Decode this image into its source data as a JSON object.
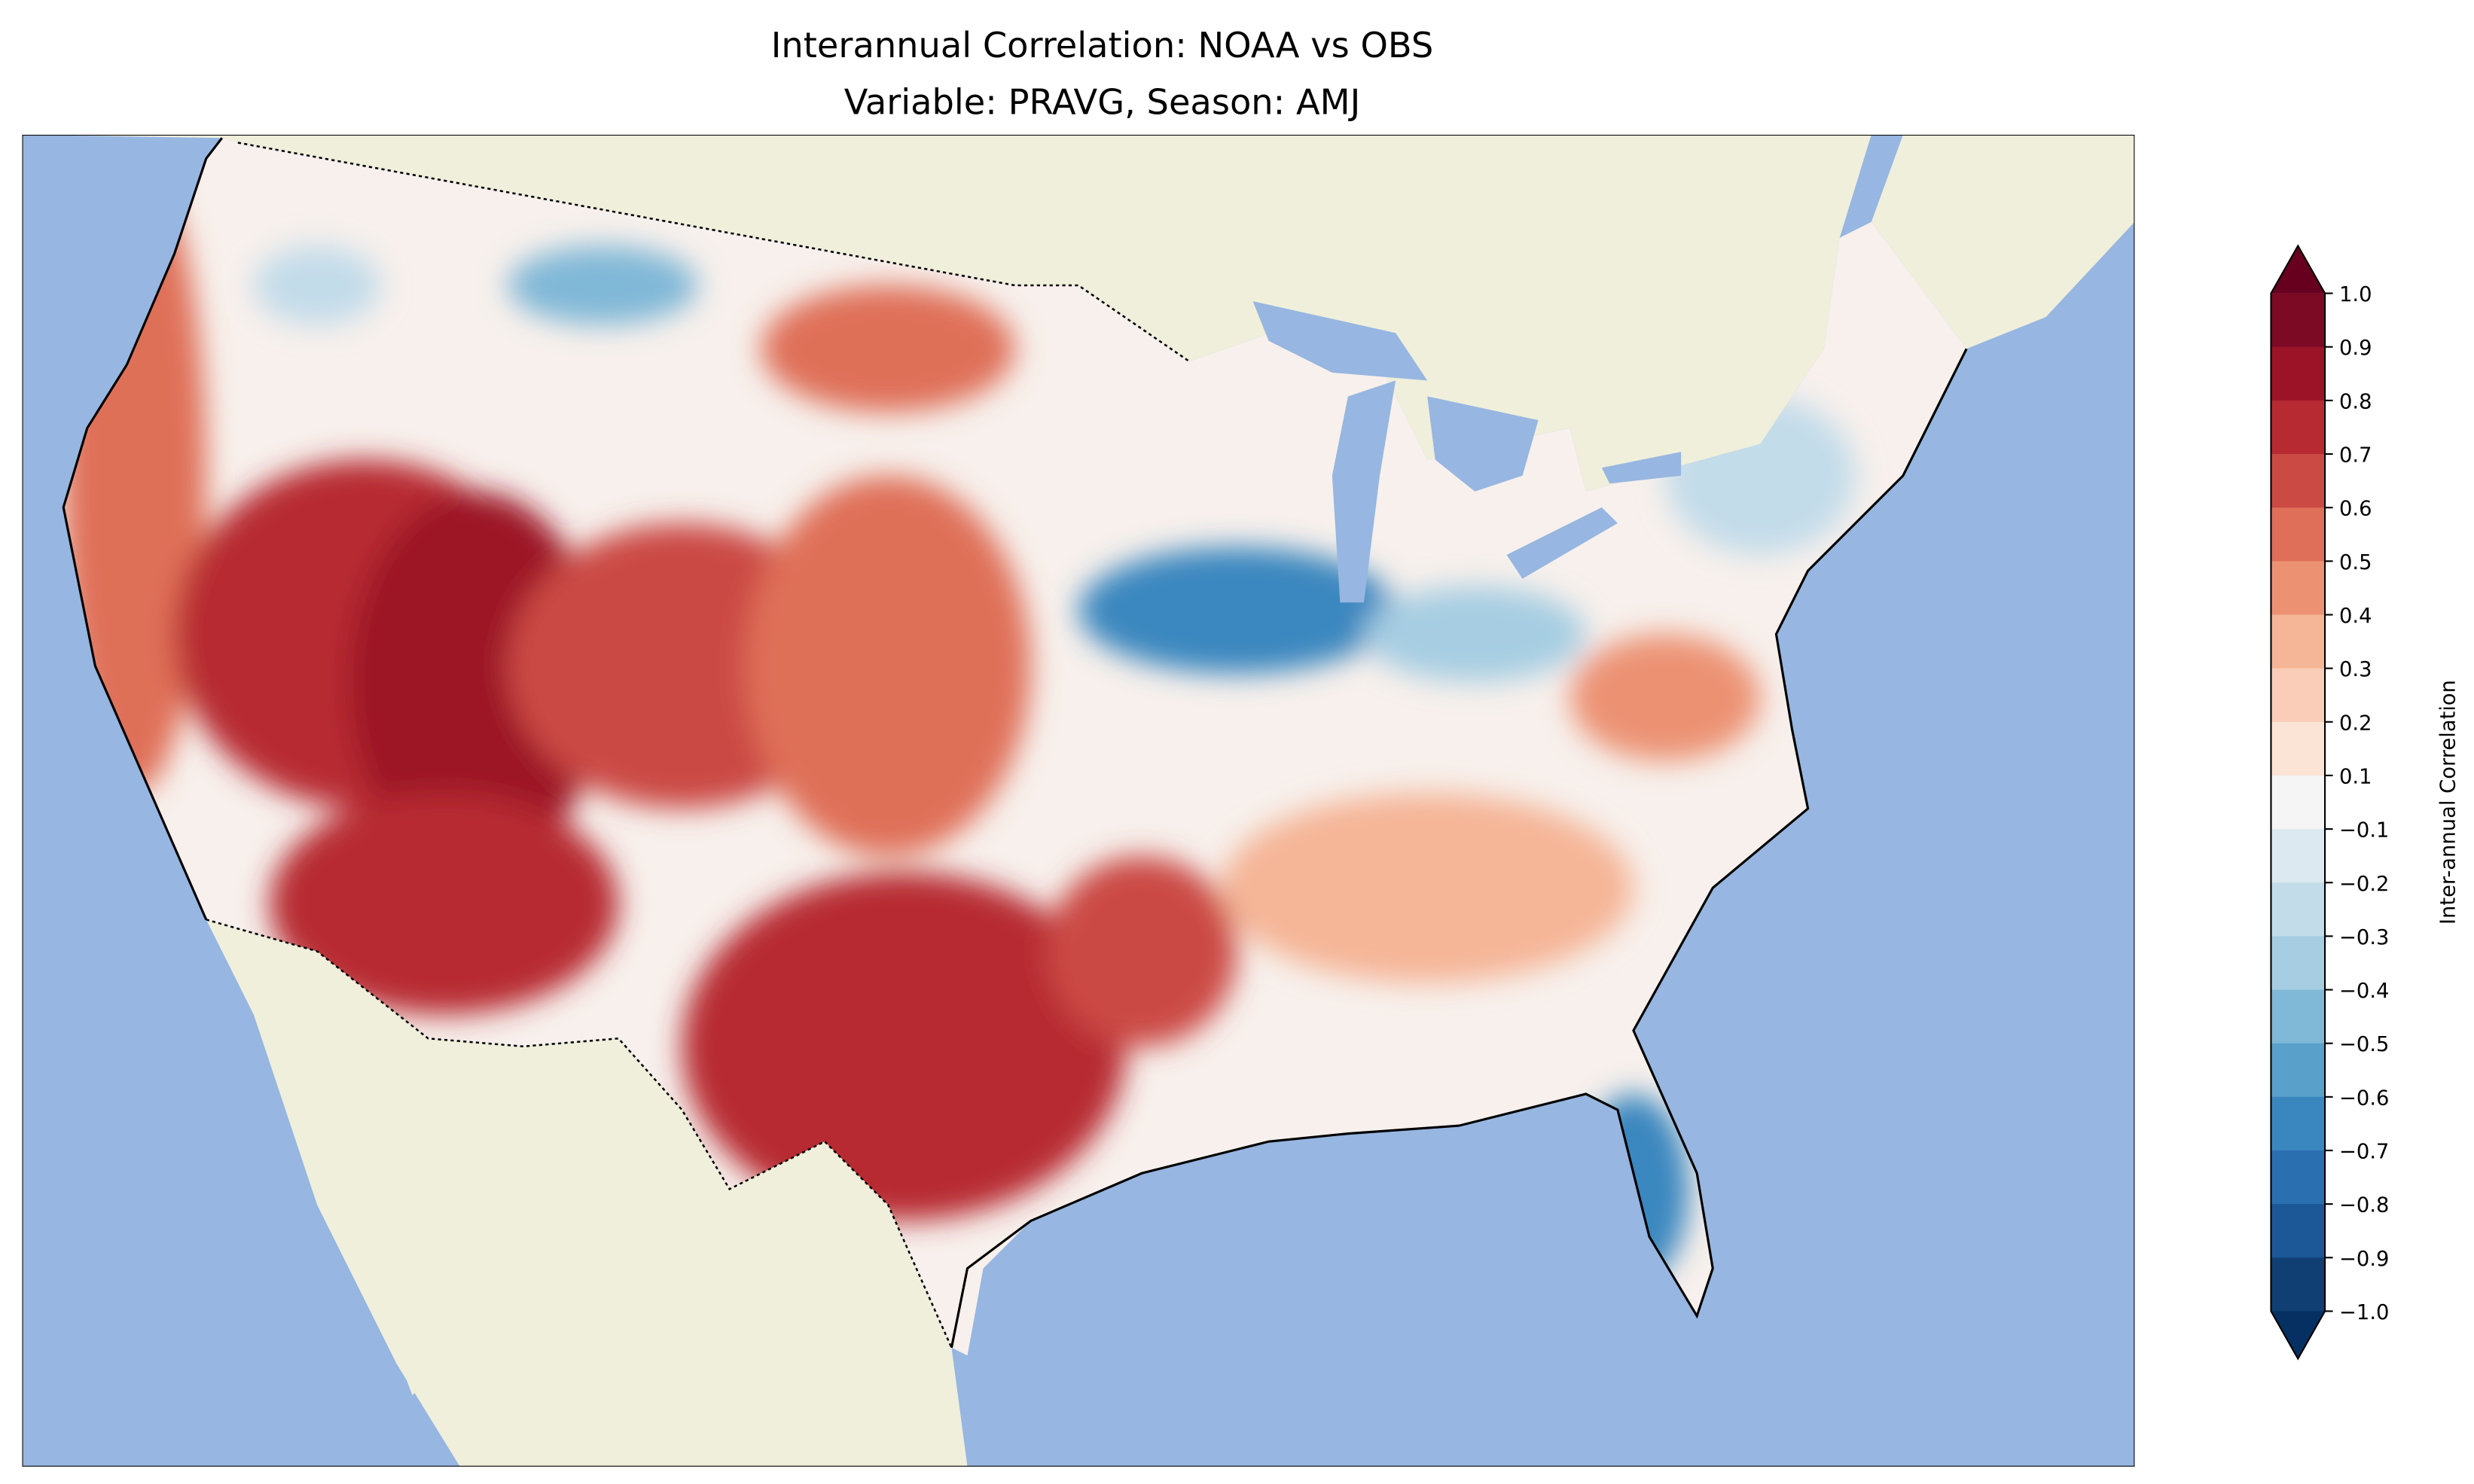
{
  "chart_data": {
    "type": "heatmap",
    "title": "Interannual Correlation: NOAA vs OBS",
    "subtitle": "Variable: PRAVG, Season: AMJ",
    "colorbar": {
      "label": "Inter-annual Correlation",
      "ticks": [
        "1.0",
        "0.9",
        "0.8",
        "0.7",
        "0.6",
        "0.5",
        "0.4",
        "0.3",
        "0.2",
        "0.1",
        "−0.1",
        "−0.2",
        "−0.3",
        "−0.4",
        "−0.5",
        "−0.6",
        "−0.7",
        "−0.8",
        "−0.9",
        "−1.0"
      ],
      "range": [
        -1.0,
        1.0
      ],
      "extend": "both",
      "colors": [
        "#67001f",
        "#7c0a25",
        "#9c1328",
        "#b72a31",
        "#cb4a44",
        "#df6f59",
        "#ec9273",
        "#f5b597",
        "#f9cdb8",
        "#fbe3d6",
        "#f5f5f5",
        "#dde9f1",
        "#c3dcea",
        "#a6cde2",
        "#80b8d7",
        "#59a0ca",
        "#3a87bf",
        "#2a70b0",
        "#1c5798",
        "#0f3f73",
        "#053061"
      ]
    },
    "map": {
      "region": "Contiguous United States",
      "ocean_color": "#97b6e1",
      "land_color": "#efefdb"
    }
  }
}
